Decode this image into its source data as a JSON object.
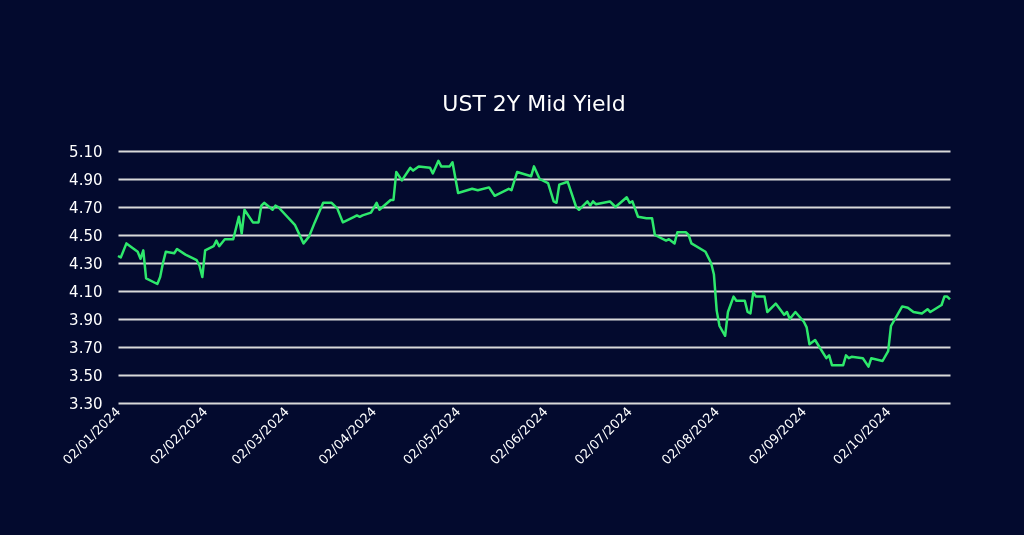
{
  "chart_data": {
    "type": "line",
    "title": "UST 2Y Mid Yield",
    "x": [
      "2024-01-02",
      "2024-01-03",
      "2024-01-05",
      "2024-01-09",
      "2024-01-10",
      "2024-01-11",
      "2024-01-12",
      "2024-01-16",
      "2024-01-17",
      "2024-01-18",
      "2024-01-19",
      "2024-01-22",
      "2024-01-23",
      "2024-01-26",
      "2024-01-30",
      "2024-01-31",
      "2024-02-01",
      "2024-02-02",
      "2024-02-05",
      "2024-02-06",
      "2024-02-07",
      "2024-02-09",
      "2024-02-12",
      "2024-02-14",
      "2024-02-15",
      "2024-02-16",
      "2024-02-19",
      "2024-02-21",
      "2024-02-22",
      "2024-02-23",
      "2024-02-26",
      "2024-02-27",
      "2024-02-28",
      "2024-03-05",
      "2024-03-08",
      "2024-03-10",
      "2024-03-12",
      "2024-03-15",
      "2024-03-18",
      "2024-03-20",
      "2024-03-22",
      "2024-03-26",
      "2024-03-27",
      "2024-03-28",
      "2024-03-29",
      "2024-04-01",
      "2024-04-03",
      "2024-04-04",
      "2024-04-08",
      "2024-04-09",
      "2024-04-10",
      "2024-04-12",
      "2024-04-15",
      "2024-04-16",
      "2024-04-18",
      "2024-04-22",
      "2024-04-23",
      "2024-04-25",
      "2024-04-26",
      "2024-04-29",
      "2024-04-30",
      "2024-05-02",
      "2024-05-07",
      "2024-05-09",
      "2024-05-13",
      "2024-05-15",
      "2024-05-20",
      "2024-05-21",
      "2024-05-23",
      "2024-05-28",
      "2024-05-29",
      "2024-05-31",
      "2024-06-03",
      "2024-06-05",
      "2024-06-06",
      "2024-06-07",
      "2024-06-10",
      "2024-06-13",
      "2024-06-14",
      "2024-06-17",
      "2024-06-18",
      "2024-06-19",
      "2024-06-20",
      "2024-06-25",
      "2024-06-27",
      "2024-07-01",
      "2024-07-02",
      "2024-07-03",
      "2024-07-05",
      "2024-07-08",
      "2024-07-10",
      "2024-07-11",
      "2024-07-15",
      "2024-07-16",
      "2024-07-18",
      "2024-07-19",
      "2024-07-22",
      "2024-07-23",
      "2024-07-24",
      "2024-07-29",
      "2024-07-31",
      "2024-08-01",
      "2024-08-02",
      "2024-08-03",
      "2024-08-05",
      "2024-08-06",
      "2024-08-08",
      "2024-08-09",
      "2024-08-12",
      "2024-08-13",
      "2024-08-14",
      "2024-08-15",
      "2024-08-16",
      "2024-08-19",
      "2024-08-20",
      "2024-08-23",
      "2024-08-26",
      "2024-08-27",
      "2024-08-28",
      "2024-08-30",
      "2024-09-02",
      "2024-09-03",
      "2024-09-04",
      "2024-09-06",
      "2024-09-10",
      "2024-09-11",
      "2024-09-12",
      "2024-09-16",
      "2024-09-17",
      "2024-09-18",
      "2024-09-19",
      "2024-09-23",
      "2024-09-25",
      "2024-09-26",
      "2024-09-30",
      "2024-10-02",
      "2024-10-03",
      "2024-10-07",
      "2024-10-09",
      "2024-10-11",
      "2024-10-14",
      "2024-10-16",
      "2024-10-17",
      "2024-10-21",
      "2024-10-22",
      "2024-10-23",
      "2024-10-24"
    ],
    "series": [
      {
        "color": "#2ee86c",
        "values": [
          4.35,
          4.34,
          4.44,
          4.38,
          4.33,
          4.39,
          4.19,
          4.15,
          4.2,
          4.3,
          4.38,
          4.37,
          4.4,
          4.36,
          4.32,
          4.28,
          4.2,
          4.39,
          4.42,
          4.46,
          4.42,
          4.47,
          4.47,
          4.63,
          4.51,
          4.68,
          4.59,
          4.59,
          4.71,
          4.73,
          4.68,
          4.71,
          4.7,
          4.57,
          4.44,
          4.49,
          4.59,
          4.73,
          4.73,
          4.69,
          4.59,
          4.63,
          4.64,
          4.63,
          4.64,
          4.66,
          4.73,
          4.68,
          4.75,
          4.75,
          4.95,
          4.89,
          4.98,
          4.96,
          4.99,
          4.98,
          4.94,
          5.03,
          4.99,
          4.99,
          5.02,
          4.8,
          4.83,
          4.82,
          4.84,
          4.78,
          4.83,
          4.82,
          4.95,
          4.92,
          4.99,
          4.9,
          4.87,
          4.74,
          4.73,
          4.86,
          4.88,
          4.7,
          4.68,
          4.74,
          4.71,
          4.74,
          4.72,
          4.74,
          4.7,
          4.77,
          4.73,
          4.74,
          4.63,
          4.62,
          4.62,
          4.5,
          4.46,
          4.47,
          4.44,
          4.52,
          4.52,
          4.5,
          4.44,
          4.38,
          4.3,
          4.22,
          3.96,
          3.85,
          3.78,
          3.95,
          4.06,
          4.03,
          4.03,
          3.95,
          3.94,
          4.09,
          4.06,
          4.06,
          3.95,
          4.01,
          3.93,
          3.95,
          3.9,
          3.95,
          3.88,
          3.84,
          3.72,
          3.75,
          3.62,
          3.64,
          3.57,
          3.57,
          3.64,
          3.62,
          3.63,
          3.62,
          3.56,
          3.62,
          3.6,
          3.67,
          3.85,
          3.99,
          3.98,
          3.95,
          3.94,
          3.97,
          3.95,
          4.0,
          4.06,
          4.06,
          4.04
        ]
      }
    ],
    "xlim": [
      "2024-01-02",
      "2024-10-24"
    ],
    "xticks": [
      {
        "value": "2024-01-02",
        "label": "02/01/2024"
      },
      {
        "value": "2024-02-02",
        "label": "02/02/2024"
      },
      {
        "value": "2024-03-02",
        "label": "02/03/2024"
      },
      {
        "value": "2024-04-02",
        "label": "02/04/2024"
      },
      {
        "value": "2024-05-02",
        "label": "02/05/2024"
      },
      {
        "value": "2024-06-02",
        "label": "02/06/2024"
      },
      {
        "value": "2024-07-02",
        "label": "02/07/2024"
      },
      {
        "value": "2024-08-02",
        "label": "02/08/2024"
      },
      {
        "value": "2024-09-02",
        "label": "02/09/2024"
      },
      {
        "value": "2024-10-02",
        "label": "02/10/2024"
      }
    ],
    "ylim": [
      3.3,
      5.1
    ],
    "yticks": [
      {
        "value": 3.3,
        "label": "3.30"
      },
      {
        "value": 3.5,
        "label": "3.50"
      },
      {
        "value": 3.7,
        "label": "3.70"
      },
      {
        "value": 3.9,
        "label": "3.90"
      },
      {
        "value": 4.1,
        "label": "4.10"
      },
      {
        "value": 4.3,
        "label": "4.30"
      },
      {
        "value": 4.5,
        "label": "4.50"
      },
      {
        "value": 4.7,
        "label": "4.70"
      },
      {
        "value": 4.9,
        "label": "4.90"
      },
      {
        "value": 5.1,
        "label": "5.10"
      }
    ],
    "grid": "y",
    "marker": "none",
    "line_style": "solid"
  }
}
